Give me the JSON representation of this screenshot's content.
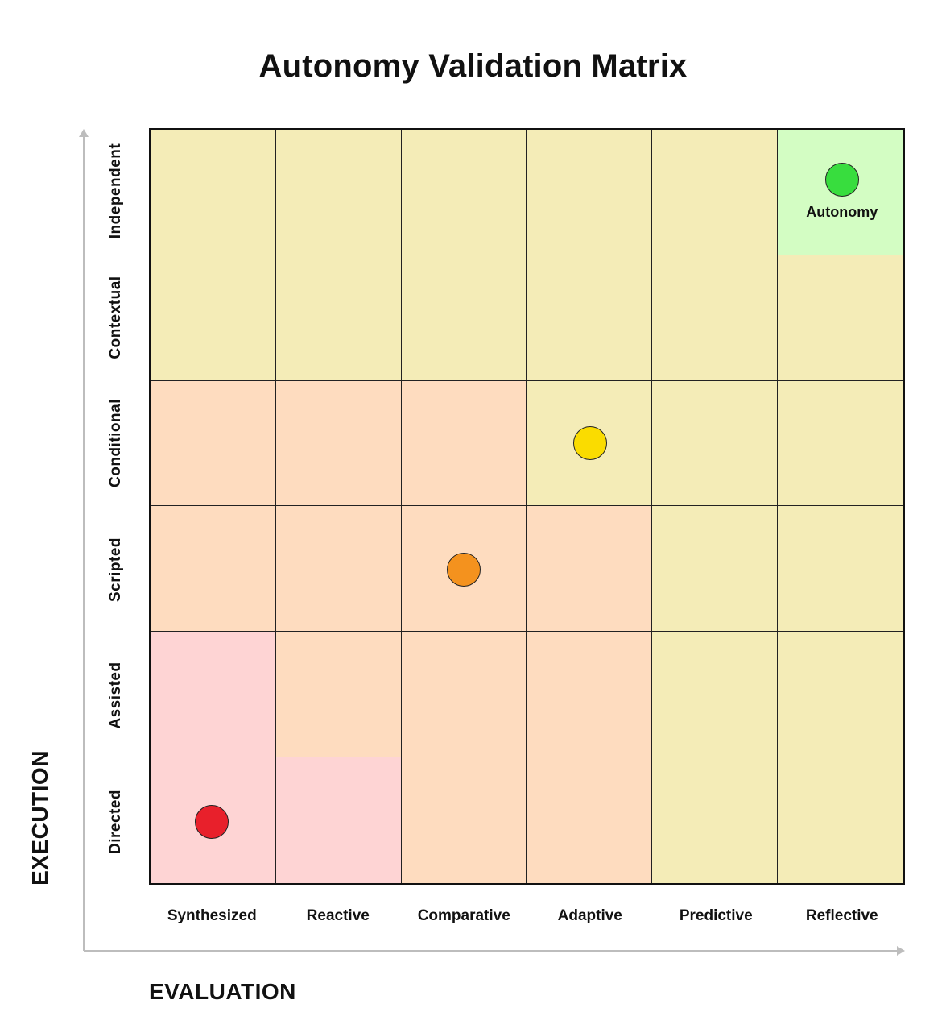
{
  "title": "Autonomy Validation Matrix",
  "axes": {
    "y_title": "EXECUTION",
    "x_title": "EVALUATION"
  },
  "rows": [
    "Independent",
    "Contextual",
    "Conditional",
    "Scripted",
    "Assisted",
    "Directed"
  ],
  "columns": [
    "Synthesized",
    "Reactive",
    "Comparative",
    "Adaptive",
    "Predictive",
    "Reflective"
  ],
  "zone_colors": {
    "red": "#fed4d4",
    "orange": "#fedcbf",
    "yellow": "#f4ecb7",
    "green": "#d3fdc3"
  },
  "cells": [
    [
      "yellow",
      "yellow",
      "yellow",
      "yellow",
      "yellow",
      "green"
    ],
    [
      "yellow",
      "yellow",
      "yellow",
      "yellow",
      "yellow",
      "yellow"
    ],
    [
      "orange",
      "orange",
      "orange",
      "yellow",
      "yellow",
      "yellow"
    ],
    [
      "orange",
      "orange",
      "orange",
      "orange",
      "yellow",
      "yellow"
    ],
    [
      "red",
      "orange",
      "orange",
      "orange",
      "yellow",
      "yellow"
    ],
    [
      "red",
      "red",
      "orange",
      "orange",
      "yellow",
      "yellow"
    ]
  ],
  "markers": [
    {
      "row": "Directed",
      "column": "Synthesized",
      "color": "#e8202b",
      "label": ""
    },
    {
      "row": "Scripted",
      "column": "Comparative",
      "color": "#f4921e",
      "label": ""
    },
    {
      "row": "Conditional",
      "column": "Adaptive",
      "color": "#fadc00",
      "label": ""
    },
    {
      "row": "Independent",
      "column": "Reflective",
      "color": "#38dd3e",
      "label": "Autonomy"
    }
  ]
}
